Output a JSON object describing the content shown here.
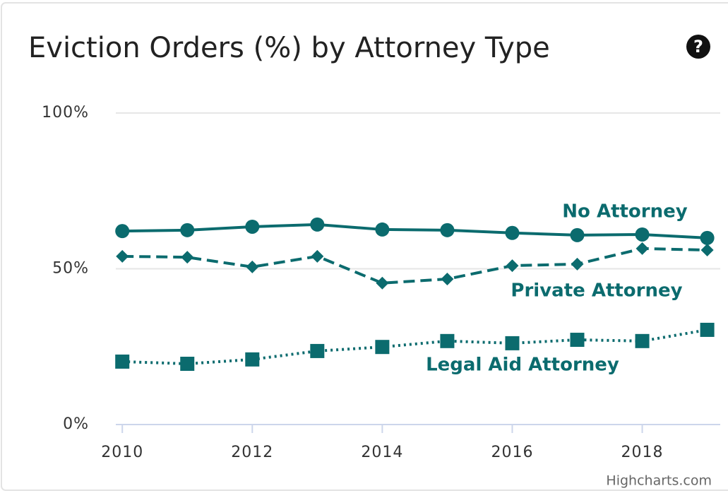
{
  "chart_data": {
    "type": "line",
    "title": "Eviction Orders (%) by Attorney Type",
    "credits": "Highcharts.com",
    "x": [
      2010,
      2011,
      2012,
      2013,
      2014,
      2015,
      2016,
      2017,
      2018,
      2019
    ],
    "series": [
      {
        "name": "No Attorney",
        "color": "#0b6b6e",
        "dash": "solid",
        "marker": "circle",
        "values": [
          62.1,
          62.4,
          63.5,
          64.2,
          62.6,
          62.4,
          61.5,
          60.8,
          61.0,
          59.9
        ]
      },
      {
        "name": "Private Attorney",
        "color": "#0b6b6e",
        "dash": "dash",
        "marker": "diamond",
        "values": [
          54.0,
          53.7,
          50.6,
          54.0,
          45.4,
          46.7,
          51.0,
          51.5,
          56.5,
          56.0
        ]
      },
      {
        "name": "Legal Aid Attorney",
        "color": "#0b6b6e",
        "dash": "dot",
        "marker": "square",
        "values": [
          20.2,
          19.5,
          20.9,
          23.6,
          24.9,
          26.8,
          26.1,
          27.2,
          26.8,
          30.4
        ]
      }
    ],
    "xlim": [
      2009.9,
      2019.2
    ],
    "xticks": [
      2010,
      2012,
      2014,
      2016,
      2018
    ],
    "ylim": [
      0,
      100
    ],
    "yticks": [
      {
        "value": 0,
        "label": "0%"
      },
      {
        "value": 50,
        "label": "50%"
      },
      {
        "value": 100,
        "label": "100%"
      }
    ],
    "grid": true
  }
}
